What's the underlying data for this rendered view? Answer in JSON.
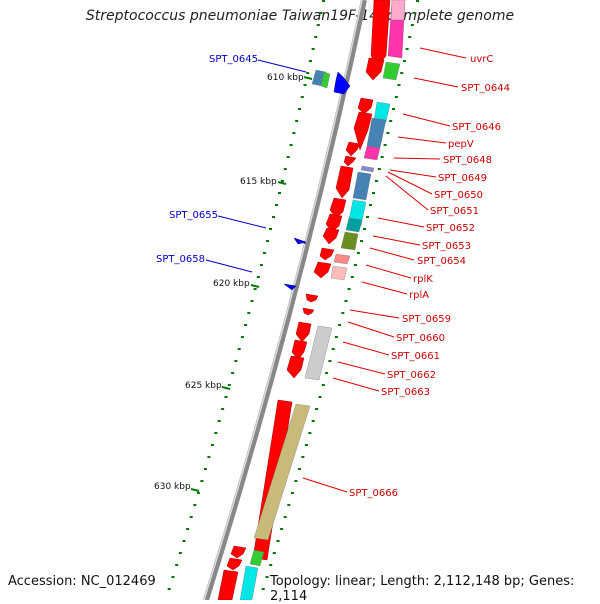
{
  "title": "Streptococcus pneumoniae Taiwan19F-14, complete genome",
  "footer": {
    "accession": "Accession: NC_012469",
    "summary": "Topology: linear; Length: 2,112,148 bp; Genes: 2,114"
  },
  "ticks": [
    "610 kbp",
    "615 kbp",
    "620 kbp",
    "625 kbp",
    "630 kbp"
  ],
  "labels_right": [
    "uvrC",
    "SPT_0644",
    "SPT_0646",
    "pepV",
    "SPT_0648",
    "SPT_0649",
    "SPT_0650",
    "SPT_0651",
    "SPT_0652",
    "SPT_0653",
    "SPT_0654",
    "rplK",
    "rplA",
    "SPT_0659",
    "SPT_0660",
    "SPT_0661",
    "SPT_0662",
    "SPT_0663",
    "SPT_0666"
  ],
  "labels_left": [
    "SPT_0645",
    "SPT_0655",
    "SPT_0658"
  ],
  "colors": {
    "forward_gene": "#ff0000",
    "reverse_gene": "#0000ff",
    "label_right": "#cc0000",
    "label_left": "#0000cc",
    "backbone": "#888888",
    "tick": "#007700"
  }
}
